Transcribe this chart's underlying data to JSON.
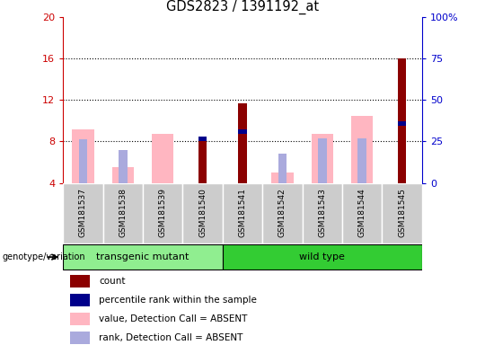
{
  "title": "GDS2823 / 1391192_at",
  "samples": [
    "GSM181537",
    "GSM181538",
    "GSM181539",
    "GSM181540",
    "GSM181541",
    "GSM181542",
    "GSM181543",
    "GSM181544",
    "GSM181545"
  ],
  "ylim_left": [
    4,
    20
  ],
  "yticks_left": [
    4,
    8,
    12,
    16,
    20
  ],
  "left_tick_labels": [
    "4",
    "8",
    "12",
    "16",
    "20"
  ],
  "right_tick_labels": [
    "0",
    "25",
    "50",
    "75",
    "100%"
  ],
  "left_axis_color": "#cc0000",
  "right_axis_color": "#0000cc",
  "count_color": "#8B0000",
  "percentile_color": "#00008B",
  "absent_value_color": "#FFB6C1",
  "absent_rank_color": "#AAAADD",
  "group_light_green": "#90EE90",
  "group_dark_green": "#33CC33",
  "gray_box": "#CCCCCC",
  "count_values": [
    null,
    null,
    null,
    8.3,
    11.7,
    null,
    null,
    null,
    16.0
  ],
  "percentile_values": [
    null,
    null,
    null,
    8.05,
    8.7,
    null,
    null,
    null,
    9.5
  ],
  "absent_value": [
    9.2,
    5.5,
    8.7,
    null,
    null,
    5.0,
    8.7,
    10.5,
    null
  ],
  "absent_rank": [
    8.2,
    7.2,
    null,
    null,
    null,
    6.8,
    8.3,
    8.3,
    null
  ],
  "group_split": 4,
  "transgenic_label": "transgenic mutant",
  "wildtype_label": "wild type",
  "genotype_label": "genotype/variation",
  "legend_items": [
    [
      "#8B0000",
      "count"
    ],
    [
      "#00008B",
      "percentile rank within the sample"
    ],
    [
      "#FFB6C1",
      "value, Detection Call = ABSENT"
    ],
    [
      "#AAAADD",
      "rank, Detection Call = ABSENT"
    ]
  ]
}
